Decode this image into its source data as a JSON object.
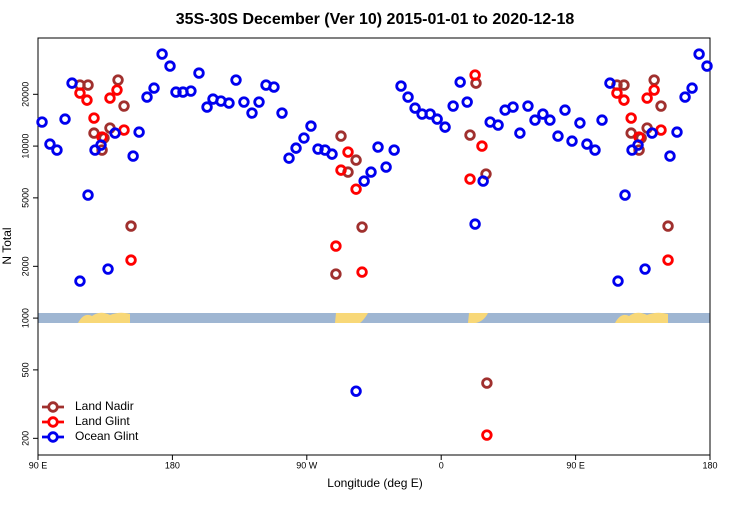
{
  "chart_data": {
    "type": "scatter",
    "title": "35S-30S December (Ver 10)   2015-01-01 to 2020-12-18",
    "xlabel": "Longitude (deg E)",
    "ylabel": "N Total",
    "xlim": [
      90,
      540
    ],
    "xticks": [
      {
        "value": 90,
        "label": "90 E"
      },
      {
        "value": 180,
        "label": "180"
      },
      {
        "value": 270,
        "label": "90 W"
      },
      {
        "value": 360,
        "label": "0"
      },
      {
        "value": 450,
        "label": "90 E"
      },
      {
        "value": 540,
        "label": "180"
      }
    ],
    "ylim": [
      160,
      42500
    ],
    "log_y": true,
    "yticks": [
      200,
      500,
      1000,
      2000,
      5000,
      10000,
      20000
    ],
    "legend": "bottomleft",
    "series": [
      {
        "name": "Land Nadir",
        "color": "#a0302e",
        "x": [
          118.1,
          123.5,
          127.5,
          132.9,
          134.2,
          138.2,
          143.6,
          147.6,
          152.3,
          289.5,
          292.9,
          297.6,
          303.0,
          307.0,
          379.3,
          383.3,
          390.0,
          390.6,
          477.7,
          482.4,
          487.2,
          492.5,
          493.9,
          497.9,
          502.6,
          507.2,
          511.9
        ],
        "values": [
          22630,
          22630,
          11900,
          9480,
          11140,
          12730,
          24210,
          17090,
          3427,
          1803,
          11430,
          7060,
          8290,
          3383,
          11590,
          23230,
          6880,
          419,
          22630,
          22630,
          11900,
          9480,
          11140,
          12730,
          24210,
          17090,
          3427
        ]
      },
      {
        "name": "Land Glint",
        "color": "#ff0000",
        "x": [
          118.1,
          122.8,
          127.5,
          132.9,
          138.2,
          142.9,
          147.6,
          152.3,
          289.5,
          292.9,
          297.6,
          303.0,
          307.0,
          379.3,
          382.7,
          387.3,
          390.6,
          477.7,
          482.4,
          487.2,
          492.5,
          497.9,
          502.6,
          507.2,
          511.9
        ],
        "values": [
          20330,
          18500,
          14550,
          11280,
          19010,
          21170,
          12390,
          2174,
          2622,
          7250,
          9230,
          5620,
          1851,
          6430,
          25870,
          10000,
          209,
          20330,
          18500,
          14550,
          11280,
          19010,
          21170,
          12390,
          2174
        ]
      },
      {
        "name": "Ocean Glint",
        "color": "#0000ee",
        "x": [
          92.7,
          98.0,
          102.7,
          108.1,
          112.8,
          118.1,
          123.5,
          128.2,
          132.2,
          136.9,
          141.6,
          153.7,
          157.7,
          163.0,
          167.7,
          173.1,
          178.4,
          182.4,
          187.1,
          192.4,
          197.8,
          203.2,
          207.2,
          212.5,
          217.9,
          222.6,
          227.9,
          233.3,
          238.0,
          242.7,
          248.0,
          253.4,
          258.1,
          262.8,
          268.1,
          272.8,
          277.5,
          282.2,
          286.9,
          303.0,
          308.4,
          313.0,
          317.7,
          323.1,
          328.5,
          333.1,
          337.8,
          342.5,
          347.2,
          352.6,
          357.3,
          362.6,
          368.0,
          372.7,
          377.4,
          382.7,
          388.1,
          392.8,
          398.1,
          402.8,
          408.1,
          412.7,
          418.1,
          422.8,
          428.1,
          432.8,
          438.2,
          442.9,
          447.6,
          452.9,
          457.6,
          463.0,
          467.7,
          473.0,
          478.4,
          483.1,
          487.8,
          491.8,
          496.5,
          501.2,
          513.2,
          517.9,
          523.3,
          528.0,
          532.7,
          538.0
        ],
        "values": [
          13790,
          10270,
          9480,
          14350,
          23230,
          1641,
          5190,
          9480,
          10140,
          1928,
          11900,
          8750,
          12060,
          19270,
          21730,
          34270,
          29180,
          20600,
          20600,
          20890,
          26570,
          16860,
          18760,
          18270,
          17780,
          24210,
          18030,
          15560,
          18030,
          22630,
          22030,
          15560,
          8510,
          9730,
          11140,
          13070,
          9610,
          9480,
          8980,
          376,
          6260,
          7060,
          9870,
          7550,
          9480,
          22330,
          19270,
          16630,
          15350,
          15350,
          14350,
          12890,
          17090,
          23550,
          18030,
          3520,
          6260,
          13790,
          13250,
          16190,
          16860,
          11900,
          17090,
          14160,
          15350,
          14160,
          11430,
          16190,
          10690,
          13620,
          10270,
          9480,
          14160,
          23230,
          1641,
          5190,
          9480,
          10140,
          1928,
          11900,
          8750,
          12060,
          19270,
          21730,
          34270,
          29180
        ]
      }
    ]
  }
}
